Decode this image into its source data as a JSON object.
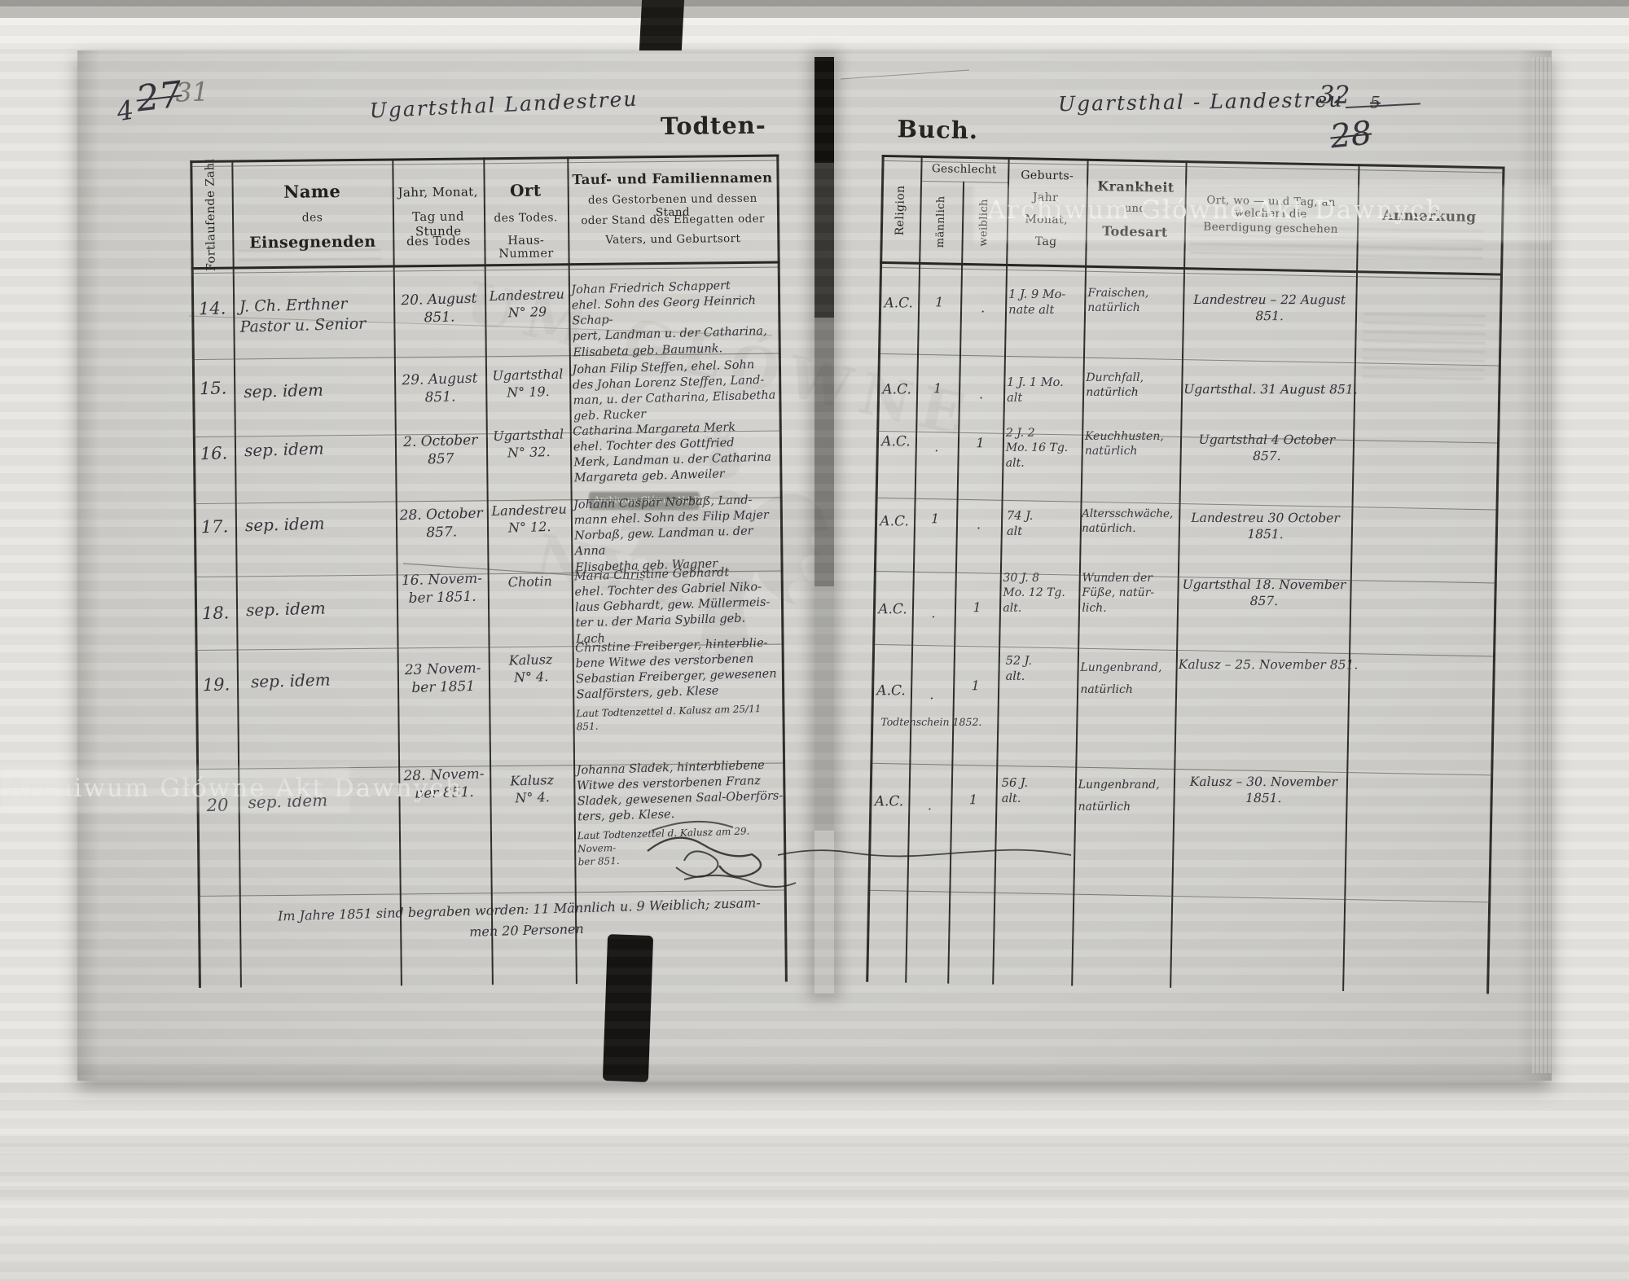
{
  "annotations": {
    "top_left_small": "4",
    "top_left_struck": "27",
    "top_left_new": "31",
    "top_right_page": "32",
    "top_right_small_struck": "5",
    "top_right_struck": "28"
  },
  "headers_script": {
    "left": "Ugartsthal  Landestreu",
    "right": "Ugartsthal - Landestreu"
  },
  "title": {
    "left": "Todten-",
    "right": "Buch."
  },
  "watermark": {
    "archive": "Archiwum Główne Akt Dawnych",
    "ghost_line1": "UM GŁÓWNE",
    "ghost_line2": "NYCH"
  },
  "left_table": {
    "col_nr_rotated": "Fortlaufende Zahl",
    "col_name_l1": "Name",
    "col_name_l2": "des",
    "col_name_l3": "Einsegnenden",
    "col_tod_l1": "Jahr, Monat,",
    "col_tod_l2": "Tag und Stunde",
    "col_tod_l3": "des Todes",
    "col_ort_l1": "Ort",
    "col_ort_l2": "des Todes.",
    "col_ort_l3": "Haus-Nummer",
    "col_tauf_l1": "Tauf- und Familiennamen",
    "col_tauf_l2": "des Gestorbenen und dessen Stand",
    "col_tauf_l3": "oder Stand des Ehegatten oder",
    "col_tauf_l4": "Vaters, und Geburtsort"
  },
  "right_table": {
    "col_religion_rotated": "Religion",
    "col_geschlecht": "Geschlecht",
    "col_maennlich_rotated": "männlich",
    "col_weiblich_rotated": "weiblich",
    "col_geburt_l1": "Geburts-",
    "col_geburt_l2": "Jahr,",
    "col_geburt_l3": "Monat,",
    "col_geburt_l4": "Tag",
    "col_krank_l1": "Krankheit",
    "col_krank_l2": "und",
    "col_krank_l3": "Todesart",
    "col_beerdigung_l1": "Ort, wo — und Tag, an welchem die",
    "col_beerdigung_l2": "Beerdigung geschehen",
    "col_anmerkung": "Anmerkung"
  },
  "rows": [
    {
      "nr": "14.",
      "einsegnender": "J. Ch. Erthner\nPastor u. Senior",
      "todestag": "20. August\n851.",
      "sterbeort": "Landestreu\nN° 29",
      "verstorbener": "Johan Friedrich Schappert\nehel. Sohn des Georg Heinrich Schap-\npert, Landman u. der Catharina,\nElisabeta geb. Baumunk.",
      "religion": "A.C.",
      "maennlich": "1",
      "weiblich": ".",
      "alter": "1 J. 9 Mo-\nnate alt",
      "krankheit": "Fraischen,\nnatürlich",
      "beerdigung": "Landestreu – 22 August\n851."
    },
    {
      "nr": "15.",
      "einsegnender": "sep. idem",
      "todestag": "29. August\n851.",
      "sterbeort": "Ugartsthal\nN° 19.",
      "verstorbener": "Johan Filip Steffen, ehel. Sohn\ndes Johan Lorenz Steffen, Land-\nman, u. der Catharina, Elisabetha\ngeb. Rucker",
      "religion": "A.C.",
      "maennlich": "1",
      "weiblich": ".",
      "alter": "1 J. 1 Mo.\nalt",
      "krankheit": "Durchfall,\nnatürlich",
      "beerdigung": "Ugartsthal. 31 August 851."
    },
    {
      "nr": "16.",
      "einsegnender": "sep. idem",
      "todestag": "2. October\n857",
      "sterbeort": "Ugartsthal\nN° 32.",
      "verstorbener": "Catharina Margareta Merk\nehel. Tochter des Gottfried\nMerk, Landman u. der Catharina\nMargareta geb. Anweiler",
      "religion": "A.C.",
      "maennlich": ".",
      "weiblich": "1",
      "alter": "2 J. 2\nMo. 16 Tg.\nalt.",
      "krankheit": "Keuchhusten,\nnatürlich",
      "beerdigung": "Ugartsthal 4 October\n857."
    },
    {
      "nr": "17.",
      "einsegnender": "sep. idem",
      "todestag": "28. October\n857.",
      "sterbeort": "Landestreu\nN° 12.",
      "verstorbener": "Johann Caspar Norbaß, Land-\nmann ehel. Sohn des Filip Majer\nNorbaß, gew. Landman u. der Anna\nElisabetha geb. Wagner",
      "religion": "A.C.",
      "maennlich": "1",
      "weiblich": ".",
      "alter": "74 J.\nalt",
      "krankheit": "Altersschwäche,\nnatürlich.",
      "beerdigung": "Landestreu 30 October\n1851."
    },
    {
      "nr": "18.",
      "einsegnender": "sep. idem",
      "todestag": "16. Novem-\nber 1851.",
      "sterbeort": "Chotin",
      "verstorbener": "Maria Christine Gebhardt\nehel. Tochter des Gabriel Niko-\nlaus Gebhardt, gew. Müllermeis-\nter u. der Maria Sybilla geb.\nLach",
      "religion": "A.C.",
      "maennlich": ".",
      "weiblich": "1",
      "alter": "30 J. 8\nMo. 12 Tg.\nalt.",
      "krankheit": "Wunden der\nFüße, natür-\nlich.",
      "beerdigung": "Ugartsthal 18. November\n857."
    },
    {
      "nr": "19.",
      "einsegnender": "sep. idem",
      "todestag": "23 Novem-\nber 1851",
      "sterbeort": "Kalusz\nN° 4.",
      "verstorbener": "Christine Freiberger, hinterblie-\nbene Witwe des verstorbenen\nSebastian Freiberger, gewesenen\nSaalförsters, geb. Klese",
      "zettel": "Laut Todtenzettel d. Kalusz am 25/11 851.",
      "religion": "A.C.",
      "religion_note": "Todtenschein 1852.",
      "maennlich": ".",
      "weiblich": "1",
      "alter": "52 J.\nalt.",
      "krankheit": "Lungenbrand,\nnatürlich",
      "beerdigung": "Kalusz – 25. November 851."
    },
    {
      "nr": "20",
      "einsegnender": "sep. idem",
      "todestag": "28. Novem-\nber 851.",
      "sterbeort": "Kalusz\nN° 4.",
      "verstorbener": "Johanna Sladek, hinterbliebene\nWitwe des verstorbenen Franz\nSladek, gewesenen Saal-Oberförs-\nters, geb. Klese.",
      "zettel": "Laut Todtenzettel d. Kalusz am 29. Novem-\nber 851.",
      "religion": "A.C.",
      "maennlich": ".",
      "weiblich": "1",
      "alter": "56 J.\nalt.",
      "krankheit": "Lungenbrand,\nnatürlich",
      "beerdigung": "Kalusz – 30. November\n1851."
    }
  ],
  "summary": {
    "line1": "Im Jahre 1851 sind begraben worden: 11 Männlich u. 9 Weiblich; zusam-",
    "line2": "men 20 Personen"
  }
}
